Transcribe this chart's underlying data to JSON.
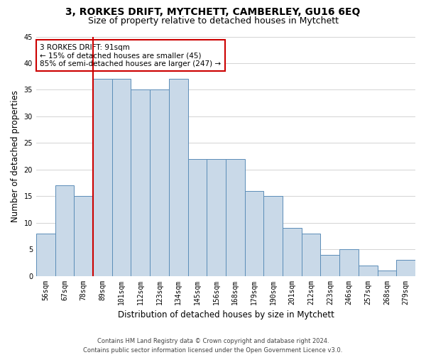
{
  "title": "3, RORKES DRIFT, MYTCHETT, CAMBERLEY, GU16 6EQ",
  "subtitle": "Size of property relative to detached houses in Mytchett",
  "xlabel": "Distribution of detached houses by size in Mytchett",
  "ylabel": "Number of detached properties",
  "bin_labels": [
    "56sqm",
    "67sqm",
    "78sqm",
    "89sqm",
    "101sqm",
    "112sqm",
    "123sqm",
    "134sqm",
    "145sqm",
    "156sqm",
    "168sqm",
    "179sqm",
    "190sqm",
    "201sqm",
    "212sqm",
    "223sqm",
    "246sqm",
    "257sqm",
    "268sqm",
    "279sqm"
  ],
  "bar_counts": [
    8,
    17,
    15,
    37,
    37,
    35,
    35,
    37,
    22,
    22,
    22,
    16,
    15,
    9,
    8,
    4,
    5,
    2,
    1,
    3
  ],
  "bar_color": "#c9d9e8",
  "bar_edge_color": "#5b8db8",
  "vline_color": "#cc0000",
  "annotation_text": "3 RORKES DRIFT: 91sqm\n← 15% of detached houses are smaller (45)\n85% of semi-detached houses are larger (247) →",
  "annotation_box_color": "white",
  "annotation_box_edge_color": "#cc0000",
  "ylim": [
    0,
    45
  ],
  "yticks": [
    0,
    5,
    10,
    15,
    20,
    25,
    30,
    35,
    40,
    45
  ],
  "grid_color": "#cccccc",
  "footnote": "Contains HM Land Registry data © Crown copyright and database right 2024.\nContains public sector information licensed under the Open Government Licence v3.0.",
  "title_fontsize": 10,
  "subtitle_fontsize": 9,
  "xlabel_fontsize": 8.5,
  "ylabel_fontsize": 8.5,
  "tick_fontsize": 7,
  "footnote_fontsize": 6
}
